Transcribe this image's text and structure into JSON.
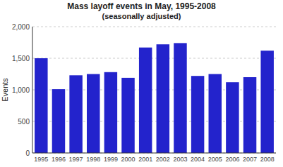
{
  "chart_data": {
    "type": "bar",
    "title": "Mass layoff events in May, 1995-2008",
    "subtitle": "(seasonally adjusted)",
    "y_label": "Events",
    "categories": [
      "1995",
      "1996",
      "1997",
      "1998",
      "1999",
      "2000",
      "2001",
      "2002",
      "2003",
      "2004",
      "2005",
      "2006",
      "2007",
      "2008"
    ],
    "values": [
      1500,
      1010,
      1230,
      1250,
      1280,
      1190,
      1670,
      1720,
      1740,
      1220,
      1250,
      1120,
      1200,
      1620
    ],
    "color": "#2323cc",
    "ylim": [
      0,
      2000
    ],
    "yticks": [
      0,
      500,
      {
        "value": 1000,
        "label": "1,000"
      },
      {
        "value": 1500,
        "label": "1,500"
      },
      {
        "value": 2000,
        "label": "2,000"
      }
    ],
    "grid": true
  }
}
